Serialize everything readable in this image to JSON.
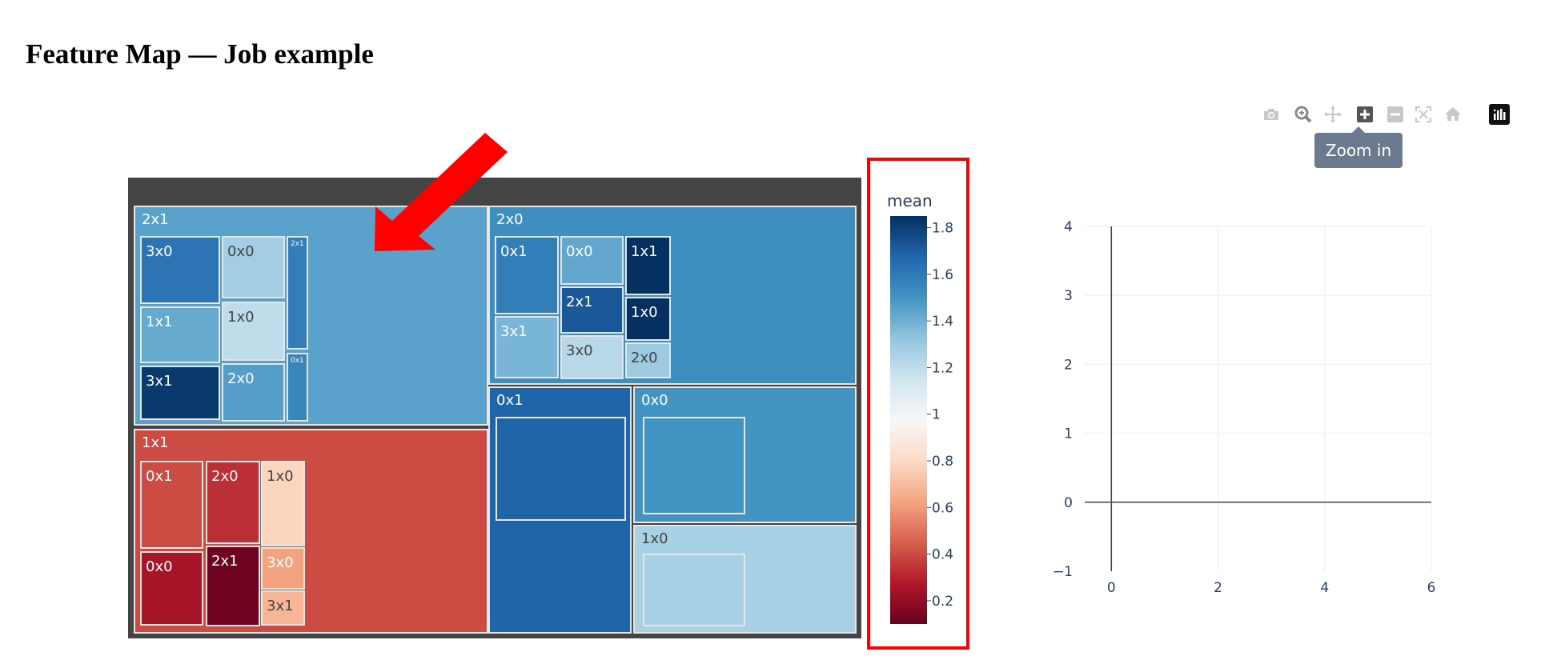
{
  "page": {
    "title": "Feature Map — Job example"
  },
  "toolbar": {
    "buttons": [
      {
        "name": "camera-icon",
        "active": false
      },
      {
        "name": "zoom-icon",
        "active": false
      },
      {
        "name": "pan-icon",
        "active": false
      },
      {
        "name": "zoom-in-icon",
        "active": true
      },
      {
        "name": "zoom-out-icon",
        "active": false
      },
      {
        "name": "autoscale-icon",
        "active": false
      },
      {
        "name": "home-icon",
        "active": false
      },
      {
        "name": "plotly-logo-icon",
        "active": false
      }
    ],
    "tooltip": "Zoom in"
  },
  "colors": {
    "highlight": "#ff0000",
    "treemap_background": "#444444",
    "arrow": "#ff0000"
  },
  "chart_data": [
    {
      "type": "treemap",
      "color_metric": "mean",
      "colorbar": {
        "title": "mean",
        "ticks": [
          "1.8",
          "1.6",
          "1.4",
          "1.2",
          "1",
          "0.8",
          "0.6",
          "0.4",
          "0.2"
        ],
        "tick_values": [
          1.8,
          1.6,
          1.4,
          1.2,
          1.0,
          0.8,
          0.6,
          0.4,
          0.2
        ],
        "range": [
          0.1,
          1.85
        ],
        "colorscale": "RdBu"
      },
      "groups": [
        {
          "label": "2x1",
          "mean": 1.45,
          "children": [
            {
              "label": "3x0",
              "mean": 1.62
            },
            {
              "label": "0x0",
              "mean": 1.28
            },
            {
              "label": "2x1",
              "mean": 1.58
            },
            {
              "label": "1x1",
              "mean": 1.42
            },
            {
              "label": "1x0",
              "mean": 1.2
            },
            {
              "label": "0x1",
              "mean": 1.55
            },
            {
              "label": "3x1",
              "mean": 1.82
            },
            {
              "label": "2x0",
              "mean": 1.46
            }
          ]
        },
        {
          "label": "1x1",
          "mean": 0.4,
          "children": [
            {
              "label": "0x1",
              "mean": 0.4
            },
            {
              "label": "2x0",
              "mean": 0.33
            },
            {
              "label": "1x0",
              "mean": 0.78
            },
            {
              "label": "0x0",
              "mean": 0.25
            },
            {
              "label": "2x1",
              "mean": 0.12
            },
            {
              "label": "3x0",
              "mean": 0.62
            },
            {
              "label": "3x1",
              "mean": 0.68
            }
          ]
        },
        {
          "label": "2x0",
          "mean": 1.52,
          "children": [
            {
              "label": "0x1",
              "mean": 1.58
            },
            {
              "label": "0x0",
              "mean": 1.43
            },
            {
              "label": "1x1",
              "mean": 1.85
            },
            {
              "label": "2x1",
              "mean": 1.72
            },
            {
              "label": "1x0",
              "mean": 1.85
            },
            {
              "label": "3x1",
              "mean": 1.38
            },
            {
              "label": "3x0",
              "mean": 1.22
            },
            {
              "label": "2x0",
              "mean": 1.3
            }
          ]
        },
        {
          "label": "0x1",
          "mean": 1.68,
          "children": [
            {
              "label": "",
              "mean": 1.68
            }
          ]
        },
        {
          "label": "0x0",
          "mean": 1.5,
          "children": [
            {
              "label": "",
              "mean": 1.5
            }
          ]
        },
        {
          "label": "1x0",
          "mean": 1.26,
          "children": [
            {
              "label": "",
              "mean": 1.26
            }
          ]
        }
      ]
    },
    {
      "type": "scatter",
      "series": [],
      "x_ticks": [
        "0",
        "2",
        "4",
        "6"
      ],
      "y_ticks": [
        "4",
        "3",
        "2",
        "1",
        "0",
        "−1"
      ],
      "xlim": [
        -0.5,
        6
      ],
      "ylim": [
        -1,
        4
      ],
      "grid": true
    }
  ]
}
